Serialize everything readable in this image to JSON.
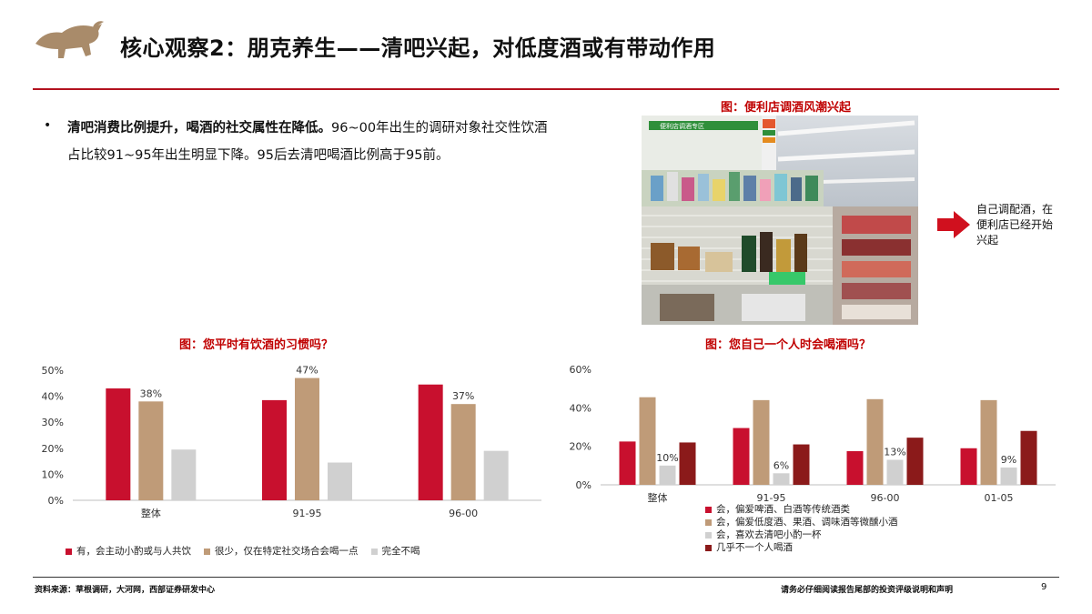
{
  "header": {
    "title": "核心观察2：朋克养生——清吧兴起，对低度酒或有带动作用",
    "logo_icon": "bull-logo-icon",
    "accent_color": "#b3121f"
  },
  "bullet": {
    "bold_text": "清吧消费比例提升，喝酒的社交属性在降低。",
    "normal_text": "96~00年出生的调研对象社交性饮酒占比较91~95年出生明显下降。95后去清吧喝酒比例高于95前。"
  },
  "photo": {
    "title": "图：便利店调酒风潮兴起",
    "sign_text": "便利店调酒专区"
  },
  "callout": {
    "text": "自己调配酒，在便利店已经开始兴起",
    "arrow_icon": "arrow-right-icon"
  },
  "footer": {
    "source": "资料来源：草根调研，大河网，西部证券研发中心",
    "disclaimer": "请务必仔细阅读报告尾部的投资评级说明和声明",
    "page": "9"
  },
  "chart_data": [
    {
      "type": "bar",
      "title": "图：您平时有饮酒的习惯吗？",
      "categories": [
        "整体",
        "91-95",
        "96-00"
      ],
      "ylim": [
        0,
        0.5
      ],
      "yticks": [
        "0%",
        "10%",
        "20%",
        "30%",
        "40%",
        "50%"
      ],
      "legend": "bottom",
      "series": [
        {
          "name": "有，会主动小酌或与人共饮",
          "color": "#c8102e",
          "values": [
            0.43,
            0.385,
            0.445
          ]
        },
        {
          "name": "很少，仅在特定社交场合会喝一点",
          "color": "#bf9b78",
          "values": [
            0.38,
            0.47,
            0.37
          ],
          "labels": [
            "38%",
            "47%",
            "37%"
          ]
        },
        {
          "name": "完全不喝",
          "color": "#d0d0d0",
          "values": [
            0.195,
            0.145,
            0.19
          ]
        }
      ]
    },
    {
      "type": "bar",
      "title": "图：您自己一个人时会喝酒吗？",
      "categories": [
        "整体",
        "91-95",
        "96-00",
        "01-05"
      ],
      "ylim": [
        0,
        0.6
      ],
      "yticks": [
        "0%",
        "20%",
        "40%",
        "60%"
      ],
      "legend": "bottom",
      "series": [
        {
          "name": "会，偏爱啤酒、白酒等传统酒类",
          "color": "#c8102e",
          "values": [
            0.225,
            0.295,
            0.175,
            0.19
          ]
        },
        {
          "name": "会，偏爱低度酒、果酒、调味酒等微醺小酒",
          "color": "#bf9b78",
          "values": [
            0.455,
            0.44,
            0.445,
            0.44
          ]
        },
        {
          "name": "会，喜欢去清吧小酌一杯",
          "color": "#d0d0d0",
          "values": [
            0.1,
            0.06,
            0.13,
            0.09
          ],
          "labels": [
            "10%",
            "6%",
            "13%",
            "9%"
          ]
        },
        {
          "name": "几乎不一个人喝酒",
          "color": "#8b1a1a",
          "values": [
            0.22,
            0.21,
            0.245,
            0.28
          ]
        }
      ]
    }
  ]
}
